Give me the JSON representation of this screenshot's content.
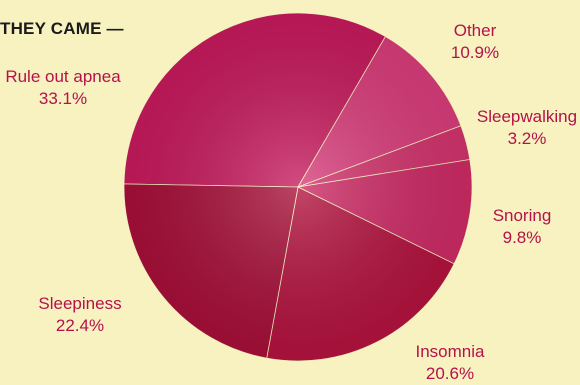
{
  "chart_data": {
    "type": "pie",
    "title": "THEY CAME —",
    "slices": [
      {
        "label": "Rule out apnea",
        "value": 33.1,
        "display": "33.1%"
      },
      {
        "label": "Other",
        "value": 10.9,
        "display": "10.9%"
      },
      {
        "label": "Sleepwalking",
        "value": 3.2,
        "display": "3.2%"
      },
      {
        "label": "Snoring",
        "value": 9.8,
        "display": "9.8%"
      },
      {
        "label": "Insomnia",
        "value": 20.6,
        "display": "20.6%"
      },
      {
        "label": "Sleepiness",
        "value": 22.4,
        "display": "22.4%"
      }
    ],
    "colors": [
      "#c51a5c",
      "#d83c7a",
      "#d1336c",
      "#cc2a64",
      "#b2123e",
      "#a60f38"
    ]
  }
}
